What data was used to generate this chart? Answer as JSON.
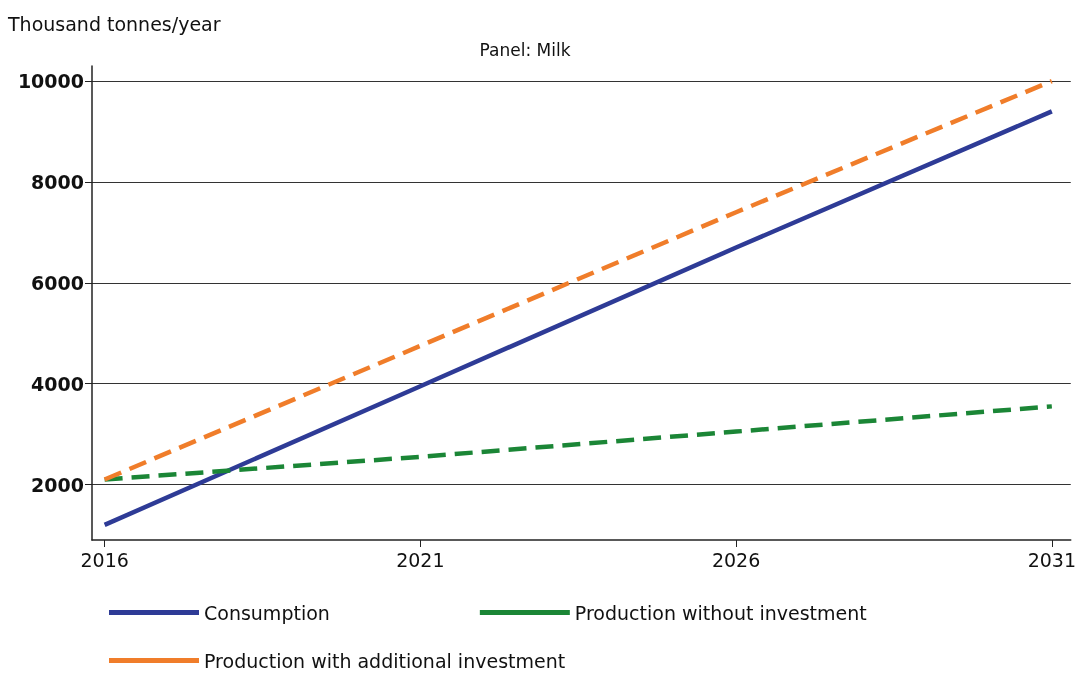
{
  "chart_data": {
    "type": "line",
    "title": "Panel: Milk",
    "ylabel": "Thousand tonnes/year",
    "x": [
      2016,
      2021,
      2026,
      2031
    ],
    "series": [
      {
        "name": "Consumption",
        "color": "#2e3b96",
        "line_style": "solid",
        "values": [
          1200,
          3950,
          6700,
          9400
        ]
      },
      {
        "name": "Production without investment",
        "color": "#1b8636",
        "line_style": "dashed",
        "values": [
          2100,
          2550,
          3050,
          3550
        ]
      },
      {
        "name": "Production with additional investment",
        "color": "#f07d2a",
        "line_style": "dashed",
        "values": [
          2100,
          4750,
          7400,
          10000
        ]
      }
    ],
    "xlim": [
      2015.8,
      2031.3
    ],
    "xticks": [
      2016,
      2021,
      2026,
      2031
    ],
    "ylim": [
      900,
      10300
    ],
    "yticks": [
      2000,
      4000,
      6000,
      8000,
      10000
    ],
    "grid": "y",
    "legend": "bottom",
    "marker": "none"
  }
}
